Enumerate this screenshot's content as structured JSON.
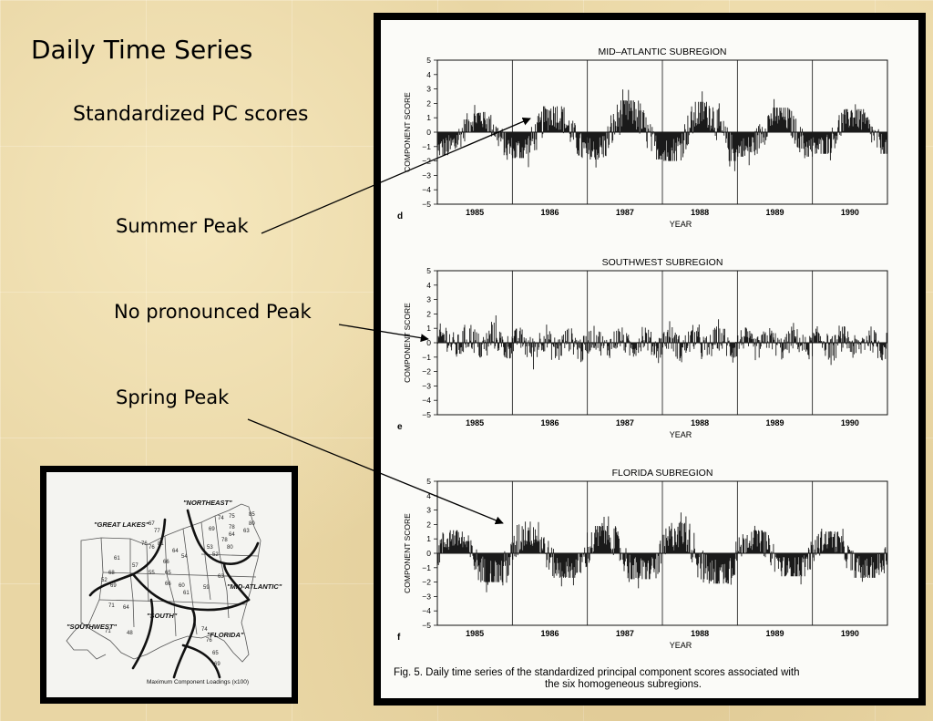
{
  "slide": {
    "title": "Daily Time Series",
    "subtitle": "Standardized PC scores",
    "annotations": [
      "Summer Peak",
      "No pronounced Peak",
      "Spring Peak"
    ]
  },
  "figure": {
    "caption_line1": "Fig. 5.  Daily time series of the standardized principal component scores associated with",
    "caption_line2": "the six homogeneous subregions.",
    "xlabel": "YEAR",
    "ylabel": "COMPONENT SCORE"
  },
  "map": {
    "labels": [
      "\"NORTHEAST\"",
      "\"GREAT LAKES\"",
      "\"MID-ATLANTIC\"",
      "\"SOUTH\"",
      "\"SOUTHWEST\"",
      "\"FLORIDA\""
    ],
    "caption": "Maximum Component Loadings (x100)",
    "numbers": [
      "67",
      "77",
      "74",
      "75",
      "85",
      "80",
      "63",
      "76",
      "78",
      "69",
      "52",
      "61",
      "76",
      "81",
      "64",
      "54",
      "57",
      "66",
      "65",
      "55",
      "52",
      "68",
      "69",
      "71",
      "64",
      "60",
      "61",
      "66",
      "48",
      "74",
      "76",
      "65",
      "69",
      "71",
      "78",
      "80",
      "53",
      "63",
      "59",
      "64"
    ]
  },
  "chart_data": [
    {
      "type": "bar",
      "title": "MID–ATLANTIC SUBREGION",
      "panel": "d",
      "xlabel": "YEAR",
      "ylabel": "COMPONENT SCORE",
      "categories": [
        "1985",
        "1986",
        "1987",
        "1988",
        "1989",
        "1990"
      ],
      "ylim": [
        -5,
        5
      ],
      "yticks": [
        "5",
        "4",
        "3",
        "2",
        "1",
        "0",
        "−1",
        "−2",
        "−3",
        "−4",
        "−5"
      ],
      "seasonal_peak": "summer",
      "values": [
        1.4,
        1.8,
        2.2,
        2.1,
        1.7,
        1.6
      ],
      "troughs": [
        -1.6,
        -1.8,
        -1.9,
        -2.0,
        -1.7,
        -1.5
      ]
    },
    {
      "type": "bar",
      "title": "SOUTHWEST SUBREGION",
      "panel": "e",
      "xlabel": "YEAR",
      "ylabel": "COMPONENT SCORE",
      "categories": [
        "1985",
        "1986",
        "1987",
        "1988",
        "1989",
        "1990"
      ],
      "ylim": [
        -5,
        5
      ],
      "yticks": [
        "5",
        "4",
        "3",
        "2",
        "1",
        "0",
        "−1",
        "−2",
        "−3",
        "−4",
        "−5"
      ],
      "seasonal_peak": "none",
      "values": [
        1.8,
        1.3,
        1.4,
        1.5,
        1.3,
        1.4
      ],
      "troughs": [
        -1.5,
        -1.8,
        -1.4,
        -1.6,
        -1.5,
        -1.6
      ]
    },
    {
      "type": "bar",
      "title": "FLORIDA SUBREGION",
      "panel": "f",
      "xlabel": "YEAR",
      "ylabel": "COMPONENT SCORE",
      "categories": [
        "1985",
        "1986",
        "1987",
        "1988",
        "1989",
        "1990"
      ],
      "ylim": [
        -5,
        5
      ],
      "yticks": [
        "5",
        "4",
        "3",
        "2",
        "1",
        "0",
        "−1",
        "−2",
        "−3",
        "−4",
        "−5"
      ],
      "seasonal_peak": "spring",
      "values": [
        1.6,
        2.2,
        1.9,
        2.1,
        1.6,
        1.5
      ],
      "troughs": [
        -2.0,
        -1.7,
        -1.8,
        -2.1,
        -1.6,
        -1.7
      ]
    }
  ]
}
